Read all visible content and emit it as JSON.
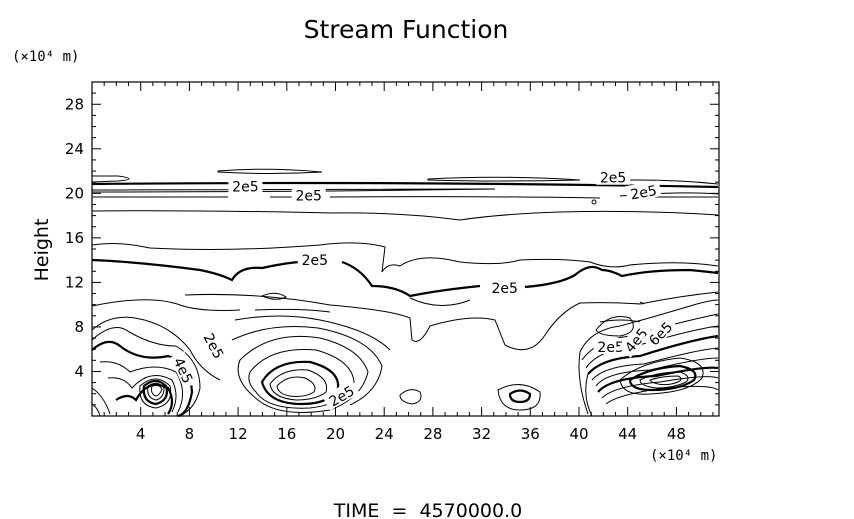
{
  "chart_data": {
    "type": "contour",
    "title": "Stream Function",
    "ylabel": "Height",
    "x_unit_label": "(×10⁴ m)",
    "y_unit_label": "(×10⁴ m)",
    "xlim": [
      0,
      51.5
    ],
    "ylim": [
      0,
      30
    ],
    "x_ticks": [
      4,
      8,
      12,
      16,
      20,
      24,
      28,
      32,
      36,
      40,
      44,
      48
    ],
    "y_ticks": [
      4,
      8,
      12,
      16,
      20,
      24,
      28
    ],
    "footer": "TIME  =  4570000.0",
    "contour_labels": [
      {
        "text": "2e5",
        "x": 12.6,
        "y": 20.6,
        "angle": 0
      },
      {
        "text": "2e5",
        "x": 17.8,
        "y": 19.8,
        "angle": 0
      },
      {
        "text": "2e5",
        "x": 18.3,
        "y": 14.0,
        "angle": 0
      },
      {
        "text": "2e5",
        "x": 33.9,
        "y": 11.5,
        "angle": 0
      },
      {
        "text": "2e5",
        "x": 42.8,
        "y": 21.4,
        "angle": 0
      },
      {
        "text": "2e5",
        "x": 45.3,
        "y": 20.1,
        "angle": -10
      },
      {
        "text": "2e5",
        "x": 10.0,
        "y": 6.3,
        "angle": 62
      },
      {
        "text": "4e5",
        "x": 7.5,
        "y": 4.1,
        "angle": 65
      },
      {
        "text": "2e5",
        "x": 20.5,
        "y": 1.8,
        "angle": -30
      },
      {
        "text": "2e5",
        "x": 42.6,
        "y": 6.2,
        "angle": 0
      },
      {
        "text": "4e5",
        "x": 44.7,
        "y": 6.8,
        "angle": -50
      },
      {
        "text": "6e5",
        "x": 46.7,
        "y": 7.4,
        "angle": -45
      }
    ]
  }
}
